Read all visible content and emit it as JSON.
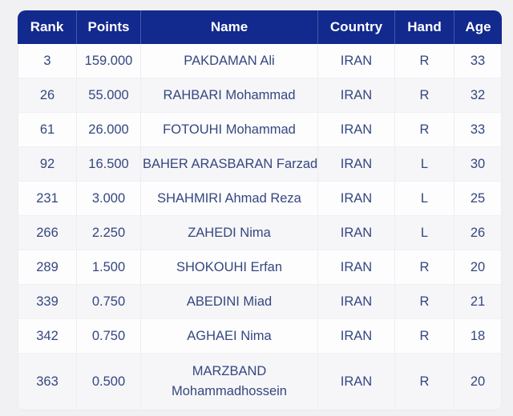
{
  "colors": {
    "page_background": "#f1f0f2",
    "header_background": "#12298e",
    "header_text": "#ffffff",
    "body_text": "#35477f",
    "row_background": "#fdfdfe",
    "row_alt_background": "#f6f6f9",
    "grid_line": "#ededf2"
  },
  "table": {
    "columns": [
      {
        "key": "rank",
        "label": "Rank"
      },
      {
        "key": "points",
        "label": "Points"
      },
      {
        "key": "name",
        "label": "Name"
      },
      {
        "key": "country",
        "label": "Country"
      },
      {
        "key": "hand",
        "label": "Hand"
      },
      {
        "key": "age",
        "label": "Age"
      }
    ],
    "rows": [
      {
        "rank": "3",
        "points": "159.000",
        "name": "PAKDAMAN Ali",
        "country": "IRAN",
        "hand": "R",
        "age": "33"
      },
      {
        "rank": "26",
        "points": "55.000",
        "name": "RAHBARI Mohammad",
        "country": "IRAN",
        "hand": "R",
        "age": "32"
      },
      {
        "rank": "61",
        "points": "26.000",
        "name": "FOTOUHI Mohammad",
        "country": "IRAN",
        "hand": "R",
        "age": "33"
      },
      {
        "rank": "92",
        "points": "16.500",
        "name": "BAHER ARASBARAN Farzad",
        "country": "IRAN",
        "hand": "L",
        "age": "30"
      },
      {
        "rank": "231",
        "points": "3.000",
        "name": "SHAHMIRI Ahmad Reza",
        "country": "IRAN",
        "hand": "L",
        "age": "25"
      },
      {
        "rank": "266",
        "points": "2.250",
        "name": "ZAHEDI Nima",
        "country": "IRAN",
        "hand": "L",
        "age": "26"
      },
      {
        "rank": "289",
        "points": "1.500",
        "name": "SHOKOUHI Erfan",
        "country": "IRAN",
        "hand": "R",
        "age": "20"
      },
      {
        "rank": "339",
        "points": "0.750",
        "name": "ABEDINI Miad",
        "country": "IRAN",
        "hand": "R",
        "age": "21"
      },
      {
        "rank": "342",
        "points": "0.750",
        "name": "AGHAEI Nima",
        "country": "IRAN",
        "hand": "R",
        "age": "18"
      },
      {
        "rank": "363",
        "points": "0.500",
        "name": "MARZBAND Mohammadhossein",
        "country": "IRAN",
        "hand": "R",
        "age": "20"
      }
    ]
  }
}
